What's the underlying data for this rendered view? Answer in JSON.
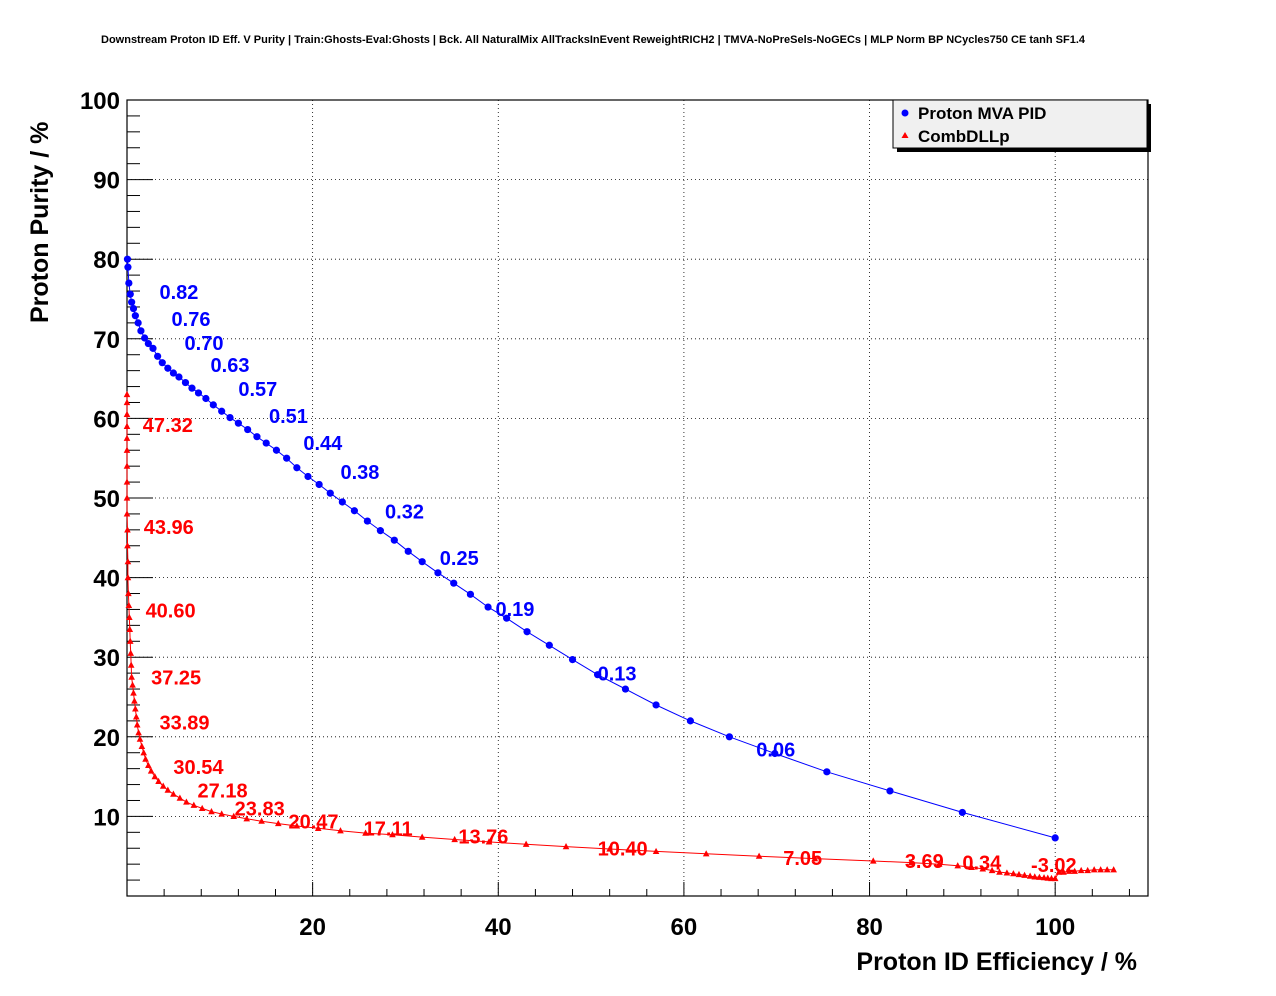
{
  "chart_data": {
    "type": "scatter",
    "title": "Downstream Proton ID Eff. V Purity | Train:Ghosts-Eval:Ghosts | Bck. All NaturalMix AllTracksInEvent ReweightRICH2 | TMVA-NoPreSels-NoGECs | MLP Norm BP NCycles750 CE tanh SF1.4",
    "xlabel": "Proton ID Efficiency / %",
    "ylabel": "Proton Purity / %",
    "xlim": [
      0,
      110
    ],
    "ylim": [
      0,
      100
    ],
    "xticks": [
      20,
      40,
      60,
      80,
      100
    ],
    "yticks": [
      10,
      20,
      30,
      40,
      50,
      60,
      70,
      80,
      90,
      100
    ],
    "grid": true,
    "legend": "top-right",
    "series": [
      {
        "name": "Proton MVA PID",
        "color": "#0000ff",
        "marker": "circle",
        "x": [
          0.05,
          0.1,
          0.2,
          0.35,
          0.5,
          0.7,
          0.9,
          1.2,
          1.5,
          1.9,
          2.3,
          2.8,
          3.3,
          3.8,
          4.4,
          5.0,
          5.6,
          6.3,
          7.0,
          7.7,
          8.5,
          9.3,
          10.2,
          11.1,
          12.0,
          13.0,
          14.0,
          15.0,
          16.1,
          17.2,
          18.3,
          19.5,
          20.7,
          21.9,
          23.2,
          24.5,
          25.9,
          27.3,
          28.8,
          30.3,
          31.8,
          33.5,
          35.2,
          37.0,
          38.9,
          40.9,
          43.1,
          45.5,
          48.0,
          50.7,
          53.7,
          57.0,
          60.7,
          64.9,
          69.8,
          75.4,
          82.2,
          90.0,
          100.0
        ],
        "y": [
          80.0,
          79.0,
          77.0,
          75.6,
          74.6,
          73.8,
          72.9,
          72.0,
          71.0,
          70.1,
          69.4,
          68.8,
          67.8,
          67.0,
          66.3,
          65.7,
          65.2,
          64.5,
          63.8,
          63.2,
          62.5,
          61.7,
          60.9,
          60.1,
          59.4,
          58.6,
          57.7,
          56.9,
          56.0,
          55.0,
          53.8,
          52.7,
          51.7,
          50.6,
          49.5,
          48.4,
          47.1,
          45.9,
          44.7,
          43.3,
          42.0,
          40.6,
          39.3,
          37.9,
          36.3,
          34.9,
          33.2,
          31.5,
          29.7,
          27.8,
          26.0,
          24.0,
          22.0,
          20.0,
          17.9,
          15.6,
          13.2,
          10.5,
          7.3
        ]
      },
      {
        "name": "CombDLLp",
        "color": "#ff0000",
        "marker": "triangle",
        "x": [
          0.0,
          0.0,
          0.0,
          0.0,
          0.0,
          0.0,
          0.0,
          0.0,
          0.0,
          0.0,
          0.05,
          0.05,
          0.1,
          0.1,
          0.15,
          0.2,
          0.25,
          0.3,
          0.35,
          0.4,
          0.45,
          0.5,
          0.6,
          0.7,
          0.8,
          0.9,
          1.0,
          1.1,
          1.25,
          1.4,
          1.6,
          1.8,
          2.0,
          2.3,
          2.6,
          3.0,
          3.4,
          3.9,
          4.4,
          5.0,
          5.7,
          6.4,
          7.2,
          8.1,
          9.1,
          10.2,
          11.5,
          12.9,
          14.5,
          16.3,
          18.3,
          20.6,
          23.0,
          25.7,
          28.6,
          31.8,
          35.3,
          39.0,
          43.0,
          47.3,
          52.0,
          57.0,
          62.4,
          68.1,
          74.1,
          80.4,
          84.5,
          87.5,
          89.5,
          91.0,
          92.2,
          93.2,
          94.0,
          94.8,
          95.5,
          96.1,
          96.7,
          97.3,
          97.8,
          98.3,
          98.8,
          99.2,
          99.6,
          100.0,
          100.4,
          100.9,
          101.5,
          102.1,
          102.8,
          103.5,
          104.2,
          104.9,
          105.6,
          106.3
        ],
        "y": [
          63.0,
          62.0,
          60.5,
          59.0,
          57.5,
          56.0,
          54.0,
          52.0,
          50.0,
          48.0,
          46.0,
          44.0,
          42.0,
          40.0,
          38.0,
          36.5,
          35.0,
          33.5,
          32.0,
          30.5,
          29.0,
          27.5,
          26.5,
          25.5,
          24.5,
          23.5,
          22.5,
          21.5,
          20.5,
          19.7,
          18.8,
          18.0,
          17.2,
          16.4,
          15.7,
          15.0,
          14.4,
          13.8,
          13.3,
          12.8,
          12.3,
          11.8,
          11.4,
          11.0,
          10.6,
          10.3,
          10.0,
          9.7,
          9.4,
          9.1,
          8.8,
          8.5,
          8.2,
          7.9,
          7.7,
          7.4,
          7.1,
          6.8,
          6.5,
          6.2,
          5.9,
          5.6,
          5.3,
          5.0,
          4.7,
          4.4,
          4.2,
          4.0,
          3.8,
          3.6,
          3.4,
          3.2,
          3.0,
          2.9,
          2.8,
          2.7,
          2.6,
          2.5,
          2.4,
          2.35,
          2.3,
          2.25,
          2.2,
          2.2,
          3.0,
          3.0,
          3.1,
          3.1,
          3.2,
          3.2,
          3.3,
          3.3,
          3.3,
          3.3
        ]
      }
    ],
    "annotations": [
      {
        "series": "Proton MVA PID",
        "text": "0.82",
        "x": 3.5,
        "y": 75.0
      },
      {
        "series": "Proton MVA PID",
        "text": "0.76",
        "x": 4.8,
        "y": 71.6
      },
      {
        "series": "Proton MVA PID",
        "text": "0.70",
        "x": 6.2,
        "y": 68.6
      },
      {
        "series": "Proton MVA PID",
        "text": "0.63",
        "x": 9.0,
        "y": 65.8
      },
      {
        "series": "Proton MVA PID",
        "text": "0.57",
        "x": 12.0,
        "y": 62.8
      },
      {
        "series": "Proton MVA PID",
        "text": "0.51",
        "x": 15.3,
        "y": 59.4
      },
      {
        "series": "Proton MVA PID",
        "text": "0.44",
        "x": 19.0,
        "y": 56.0
      },
      {
        "series": "Proton MVA PID",
        "text": "0.38",
        "x": 23.0,
        "y": 52.4
      },
      {
        "series": "Proton MVA PID",
        "text": "0.32",
        "x": 27.8,
        "y": 47.4
      },
      {
        "series": "Proton MVA PID",
        "text": "0.25",
        "x": 33.7,
        "y": 41.6
      },
      {
        "series": "Proton MVA PID",
        "text": "0.19",
        "x": 39.7,
        "y": 35.2
      },
      {
        "series": "Proton MVA PID",
        "text": "0.13",
        "x": 50.7,
        "y": 27.1
      },
      {
        "series": "Proton MVA PID",
        "text": "0.06",
        "x": 67.8,
        "y": 17.5
      },
      {
        "series": "CombDLLp",
        "text": "47.32",
        "x": 1.7,
        "y": 58.3
      },
      {
        "series": "CombDLLp",
        "text": "43.96",
        "x": 1.8,
        "y": 45.5
      },
      {
        "series": "CombDLLp",
        "text": "40.60",
        "x": 2.0,
        "y": 35.0
      },
      {
        "series": "CombDLLp",
        "text": "37.25",
        "x": 2.6,
        "y": 26.6
      },
      {
        "series": "CombDLLp",
        "text": "33.89",
        "x": 3.5,
        "y": 20.9
      },
      {
        "series": "CombDLLp",
        "text": "30.54",
        "x": 5.0,
        "y": 15.3
      },
      {
        "series": "CombDLLp",
        "text": "27.18",
        "x": 7.6,
        "y": 12.4
      },
      {
        "series": "CombDLLp",
        "text": "23.83",
        "x": 11.6,
        "y": 10.1
      },
      {
        "series": "CombDLLp",
        "text": "20.47",
        "x": 17.4,
        "y": 8.5
      },
      {
        "series": "CombDLLp",
        "text": "17.11",
        "x": 25.5,
        "y": 7.6
      },
      {
        "series": "CombDLLp",
        "text": "13.76",
        "x": 35.7,
        "y": 6.6
      },
      {
        "series": "CombDLLp",
        "text": "10.40",
        "x": 50.7,
        "y": 5.1
      },
      {
        "series": "CombDLLp",
        "text": "7.05",
        "x": 70.7,
        "y": 3.9
      },
      {
        "series": "CombDLLp",
        "text": "3.69",
        "x": 83.8,
        "y": 3.5
      },
      {
        "series": "CombDLLp",
        "text": "0.34",
        "x": 90.0,
        "y": 3.3
      },
      {
        "series": "CombDLLp",
        "text": "-3.02",
        "x": 97.4,
        "y": 3.0
      }
    ]
  }
}
